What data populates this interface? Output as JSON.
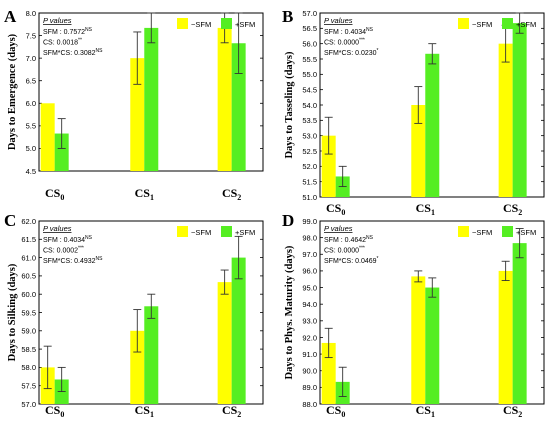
{
  "colors": {
    "minus": "#ffff00",
    "plus": "#55ee22",
    "axis": "#000000",
    "error": "#333333"
  },
  "legend": {
    "minus_label": "−SFM",
    "plus_label": "+SFM"
  },
  "pvalues_title": "P values",
  "chart_data": [
    {
      "type": "bar",
      "panel_letter": "A",
      "ylabel": "Days to Emergence (days)",
      "ylim": [
        4.5,
        8.0
      ],
      "yticks": [
        "4.5",
        "5.0",
        "5.5",
        "6.0",
        "6.5",
        "7.0",
        "7.5",
        "8.0"
      ],
      "categories": [
        {
          "base": "CS",
          "sub": "0"
        },
        {
          "base": "CS",
          "sub": "1"
        },
        {
          "base": "CS",
          "sub": "2"
        }
      ],
      "series": [
        {
          "name": "−SFM",
          "values": [
            6.0,
            7.0,
            7.67
          ],
          "errors": [
            0.0,
            0.58,
            0.33
          ]
        },
        {
          "name": "+SFM",
          "values": [
            5.33,
            7.67,
            7.33
          ],
          "errors": [
            0.33,
            0.33,
            0.67
          ]
        }
      ],
      "stats": [
        {
          "label": "SFM : 0.7572",
          "sup": "NS"
        },
        {
          "label": "CS: 0.0018",
          "sup": "**"
        },
        {
          "label": "SFM*CS: 0.3082",
          "sup": "NS"
        }
      ],
      "legend_position": "top-right"
    },
    {
      "type": "bar",
      "panel_letter": "B",
      "ylabel": "Days to Tasseling (days)",
      "ylim": [
        51.0,
        57.0
      ],
      "yticks": [
        "51.0",
        "51.5",
        "52.0",
        "52.5",
        "53.0",
        "53.5",
        "54.0",
        "54.5",
        "55.0",
        "55.5",
        "56.0",
        "56.5",
        "57.0"
      ],
      "categories": [
        {
          "base": "CS",
          "sub": "0"
        },
        {
          "base": "CS",
          "sub": "1"
        },
        {
          "base": "CS",
          "sub": "2"
        }
      ],
      "series": [
        {
          "name": "−SFM",
          "values": [
            53.0,
            54.0,
            56.0
          ],
          "errors": [
            0.6,
            0.6,
            0.6
          ]
        },
        {
          "name": "+SFM",
          "values": [
            51.67,
            55.67,
            56.67
          ],
          "errors": [
            0.33,
            0.33,
            0.33
          ]
        }
      ],
      "stats": [
        {
          "label": "SFM : 0.4034",
          "sup": "NS"
        },
        {
          "label": "CS: 0.0000",
          "sup": "***"
        },
        {
          "label": "SFM*CS: 0.0230",
          "sup": "*"
        }
      ],
      "legend_position": "top-right"
    },
    {
      "type": "bar",
      "panel_letter": "C",
      "ylabel": "Days to Silking (days)",
      "ylim": [
        57.0,
        62.0
      ],
      "yticks": [
        "57.0",
        "57.5",
        "58.0",
        "58.5",
        "59.0",
        "59.5",
        "60.0",
        "60.5",
        "61.0",
        "61.5",
        "62.0"
      ],
      "categories": [
        {
          "base": "CS",
          "sub": "0"
        },
        {
          "base": "CS",
          "sub": "1"
        },
        {
          "base": "CS",
          "sub": "2"
        }
      ],
      "series": [
        {
          "name": "−SFM",
          "values": [
            58.0,
            59.0,
            60.33
          ],
          "errors": [
            0.58,
            0.58,
            0.33
          ]
        },
        {
          "name": "+SFM",
          "values": [
            57.67,
            59.67,
            61.0
          ],
          "errors": [
            0.33,
            0.33,
            0.58
          ]
        }
      ],
      "stats": [
        {
          "label": "SFM : 0.4034",
          "sup": "NS"
        },
        {
          "label": "CS: 0.0002",
          "sup": "***"
        },
        {
          "label": "SFM*CS: 0.4932",
          "sup": "NS"
        }
      ],
      "legend_position": "top-right"
    },
    {
      "type": "bar",
      "panel_letter": "D",
      "ylabel": "Days to Phys. Maturity (days)",
      "ylim": [
        88.0,
        99.0
      ],
      "yticks": [
        "88.0",
        "89.0",
        "90.0",
        "91.0",
        "92.0",
        "93.0",
        "94.0",
        "95.0",
        "96.0",
        "97.0",
        "98.0",
        "99.0"
      ],
      "categories": [
        {
          "base": "CS",
          "sub": "0"
        },
        {
          "base": "CS",
          "sub": "1"
        },
        {
          "base": "CS",
          "sub": "2"
        }
      ],
      "series": [
        {
          "name": "−SFM",
          "values": [
            91.67,
            95.67,
            96.0
          ],
          "errors": [
            0.88,
            0.33,
            0.58
          ]
        },
        {
          "name": "+SFM",
          "values": [
            89.33,
            95.0,
            97.67
          ],
          "errors": [
            0.88,
            0.58,
            0.88
          ]
        }
      ],
      "stats": [
        {
          "label": "SFM : 0.4642",
          "sup": "NS"
        },
        {
          "label": "CS: 0.0000",
          "sup": "***"
        },
        {
          "label": "SFM*CS: 0.0469",
          "sup": "*"
        }
      ],
      "legend_position": "top-right"
    }
  ]
}
